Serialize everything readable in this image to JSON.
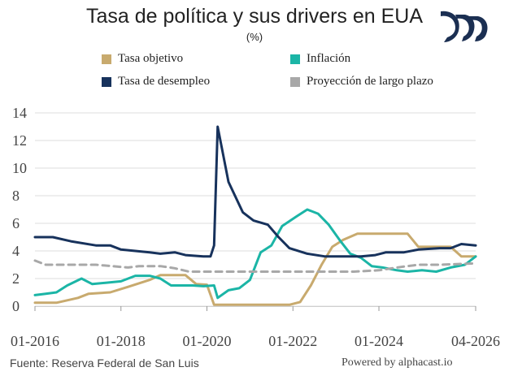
{
  "header": {
    "title": "Tasa de política y sus drivers en EUA",
    "subtitle": "(%)"
  },
  "logo": {
    "icon": "alphacast-logo-icon",
    "color": "#1b2f52"
  },
  "legend": [
    {
      "label": "Tasa objetivo",
      "color": "#c8aa6e"
    },
    {
      "label": "Inflación",
      "color": "#1bb5a6"
    },
    {
      "label": "Tasa de desempleo",
      "color": "#17325c"
    },
    {
      "label": "Proyección de largo plazo",
      "color": "#a8a8a8"
    }
  ],
  "footer": {
    "source": "Fuente: Reserva Federal de San Luis",
    "powered": "Powered by alphacast.io"
  },
  "chart_data": {
    "type": "line",
    "title": "Tasa de política y sus drivers en EUA",
    "subtitle": "(%)",
    "xlabel": "",
    "ylabel": "",
    "x_range": [
      "2016-01",
      "2026-04"
    ],
    "x_ticks": [
      "01-2016",
      "01-2018",
      "01-2020",
      "01-2022",
      "01-2024",
      "04-2026"
    ],
    "ylim": [
      0,
      14
    ],
    "y_ticks": [
      "0",
      "2",
      "4",
      "6",
      "8",
      "10",
      "12",
      "14"
    ],
    "grid": "horizontal",
    "legend_position": "top",
    "series": [
      {
        "name": "Tasa objetivo",
        "color": "#c8aa6e",
        "dashed": false,
        "points": [
          [
            "2016-01",
            0.25
          ],
          [
            "2016-07",
            0.25
          ],
          [
            "2017-01",
            0.6
          ],
          [
            "2017-04",
            0.9
          ],
          [
            "2017-10",
            1.0
          ],
          [
            "2018-03",
            1.4
          ],
          [
            "2018-09",
            1.9
          ],
          [
            "2018-12",
            2.25
          ],
          [
            "2019-07",
            2.25
          ],
          [
            "2019-10",
            1.6
          ],
          [
            "2020-01",
            1.55
          ],
          [
            "2020-03",
            0.1
          ],
          [
            "2021-12",
            0.1
          ],
          [
            "2022-03",
            0.3
          ],
          [
            "2022-06",
            1.5
          ],
          [
            "2022-09",
            3.0
          ],
          [
            "2022-12",
            4.3
          ],
          [
            "2023-03",
            4.8
          ],
          [
            "2023-07",
            5.25
          ],
          [
            "2024-09",
            5.25
          ],
          [
            "2024-12",
            4.3
          ],
          [
            "2025-09",
            4.3
          ],
          [
            "2025-12",
            3.6
          ],
          [
            "2026-04",
            3.6
          ]
        ]
      },
      {
        "name": "Inflación",
        "color": "#1bb5a6",
        "dashed": false,
        "points": [
          [
            "2016-01",
            0.8
          ],
          [
            "2016-04",
            0.9
          ],
          [
            "2016-07",
            1.0
          ],
          [
            "2016-10",
            1.5
          ],
          [
            "2017-02",
            2.0
          ],
          [
            "2017-05",
            1.6
          ],
          [
            "2017-09",
            1.7
          ],
          [
            "2018-01",
            1.8
          ],
          [
            "2018-05",
            2.2
          ],
          [
            "2018-09",
            2.2
          ],
          [
            "2018-12",
            2.0
          ],
          [
            "2019-03",
            1.5
          ],
          [
            "2019-09",
            1.5
          ],
          [
            "2019-12",
            1.45
          ],
          [
            "2020-03",
            1.5
          ],
          [
            "2020-04",
            0.6
          ],
          [
            "2020-07",
            1.15
          ],
          [
            "2020-10",
            1.3
          ],
          [
            "2021-01",
            1.9
          ],
          [
            "2021-04",
            3.9
          ],
          [
            "2021-07",
            4.4
          ],
          [
            "2021-10",
            5.8
          ],
          [
            "2022-02",
            6.5
          ],
          [
            "2022-05",
            7.0
          ],
          [
            "2022-08",
            6.7
          ],
          [
            "2022-11",
            5.9
          ],
          [
            "2023-02",
            4.8
          ],
          [
            "2023-05",
            3.8
          ],
          [
            "2023-08",
            3.5
          ],
          [
            "2023-11",
            2.9
          ],
          [
            "2024-02",
            2.8
          ],
          [
            "2024-06",
            2.6
          ],
          [
            "2024-09",
            2.5
          ],
          [
            "2025-01",
            2.6
          ],
          [
            "2025-05",
            2.5
          ],
          [
            "2025-09",
            2.8
          ],
          [
            "2026-01",
            3.0
          ],
          [
            "2026-04",
            3.6
          ]
        ]
      },
      {
        "name": "Tasa de desempleo",
        "color": "#17325c",
        "dashed": false,
        "points": [
          [
            "2016-01",
            5.0
          ],
          [
            "2016-06",
            5.0
          ],
          [
            "2016-11",
            4.7
          ],
          [
            "2017-06",
            4.4
          ],
          [
            "2017-10",
            4.4
          ],
          [
            "2018-01",
            4.1
          ],
          [
            "2018-09",
            3.9
          ],
          [
            "2018-12",
            3.8
          ],
          [
            "2019-04",
            3.9
          ],
          [
            "2019-07",
            3.7
          ],
          [
            "2019-12",
            3.6
          ],
          [
            "2020-02",
            3.6
          ],
          [
            "2020-03",
            4.4
          ],
          [
            "2020-04",
            13.0
          ],
          [
            "2020-07",
            9.0
          ],
          [
            "2020-11",
            6.8
          ],
          [
            "2021-02",
            6.2
          ],
          [
            "2021-06",
            5.9
          ],
          [
            "2021-09",
            5.0
          ],
          [
            "2021-12",
            4.2
          ],
          [
            "2022-05",
            3.8
          ],
          [
            "2022-10",
            3.6
          ],
          [
            "2023-03",
            3.6
          ],
          [
            "2023-08",
            3.6
          ],
          [
            "2023-12",
            3.7
          ],
          [
            "2024-03",
            3.9
          ],
          [
            "2024-08",
            3.9
          ],
          [
            "2024-12",
            4.1
          ],
          [
            "2025-06",
            4.2
          ],
          [
            "2025-09",
            4.2
          ],
          [
            "2025-12",
            4.5
          ],
          [
            "2026-04",
            4.4
          ]
        ]
      },
      {
        "name": "Proyección de largo plazo",
        "color": "#a8a8a8",
        "dashed": true,
        "points": [
          [
            "2016-01",
            3.3
          ],
          [
            "2016-04",
            3.0
          ],
          [
            "2016-09",
            3.0
          ],
          [
            "2017-06",
            3.0
          ],
          [
            "2018-03",
            2.8
          ],
          [
            "2018-06",
            2.9
          ],
          [
            "2018-12",
            2.9
          ],
          [
            "2019-04",
            2.75
          ],
          [
            "2019-08",
            2.5
          ],
          [
            "2022-03",
            2.5
          ],
          [
            "2022-09",
            2.5
          ],
          [
            "2023-06",
            2.5
          ],
          [
            "2024-01",
            2.6
          ],
          [
            "2024-06",
            2.8
          ],
          [
            "2024-12",
            3.0
          ],
          [
            "2025-06",
            3.0
          ],
          [
            "2026-04",
            3.1
          ]
        ]
      }
    ]
  }
}
